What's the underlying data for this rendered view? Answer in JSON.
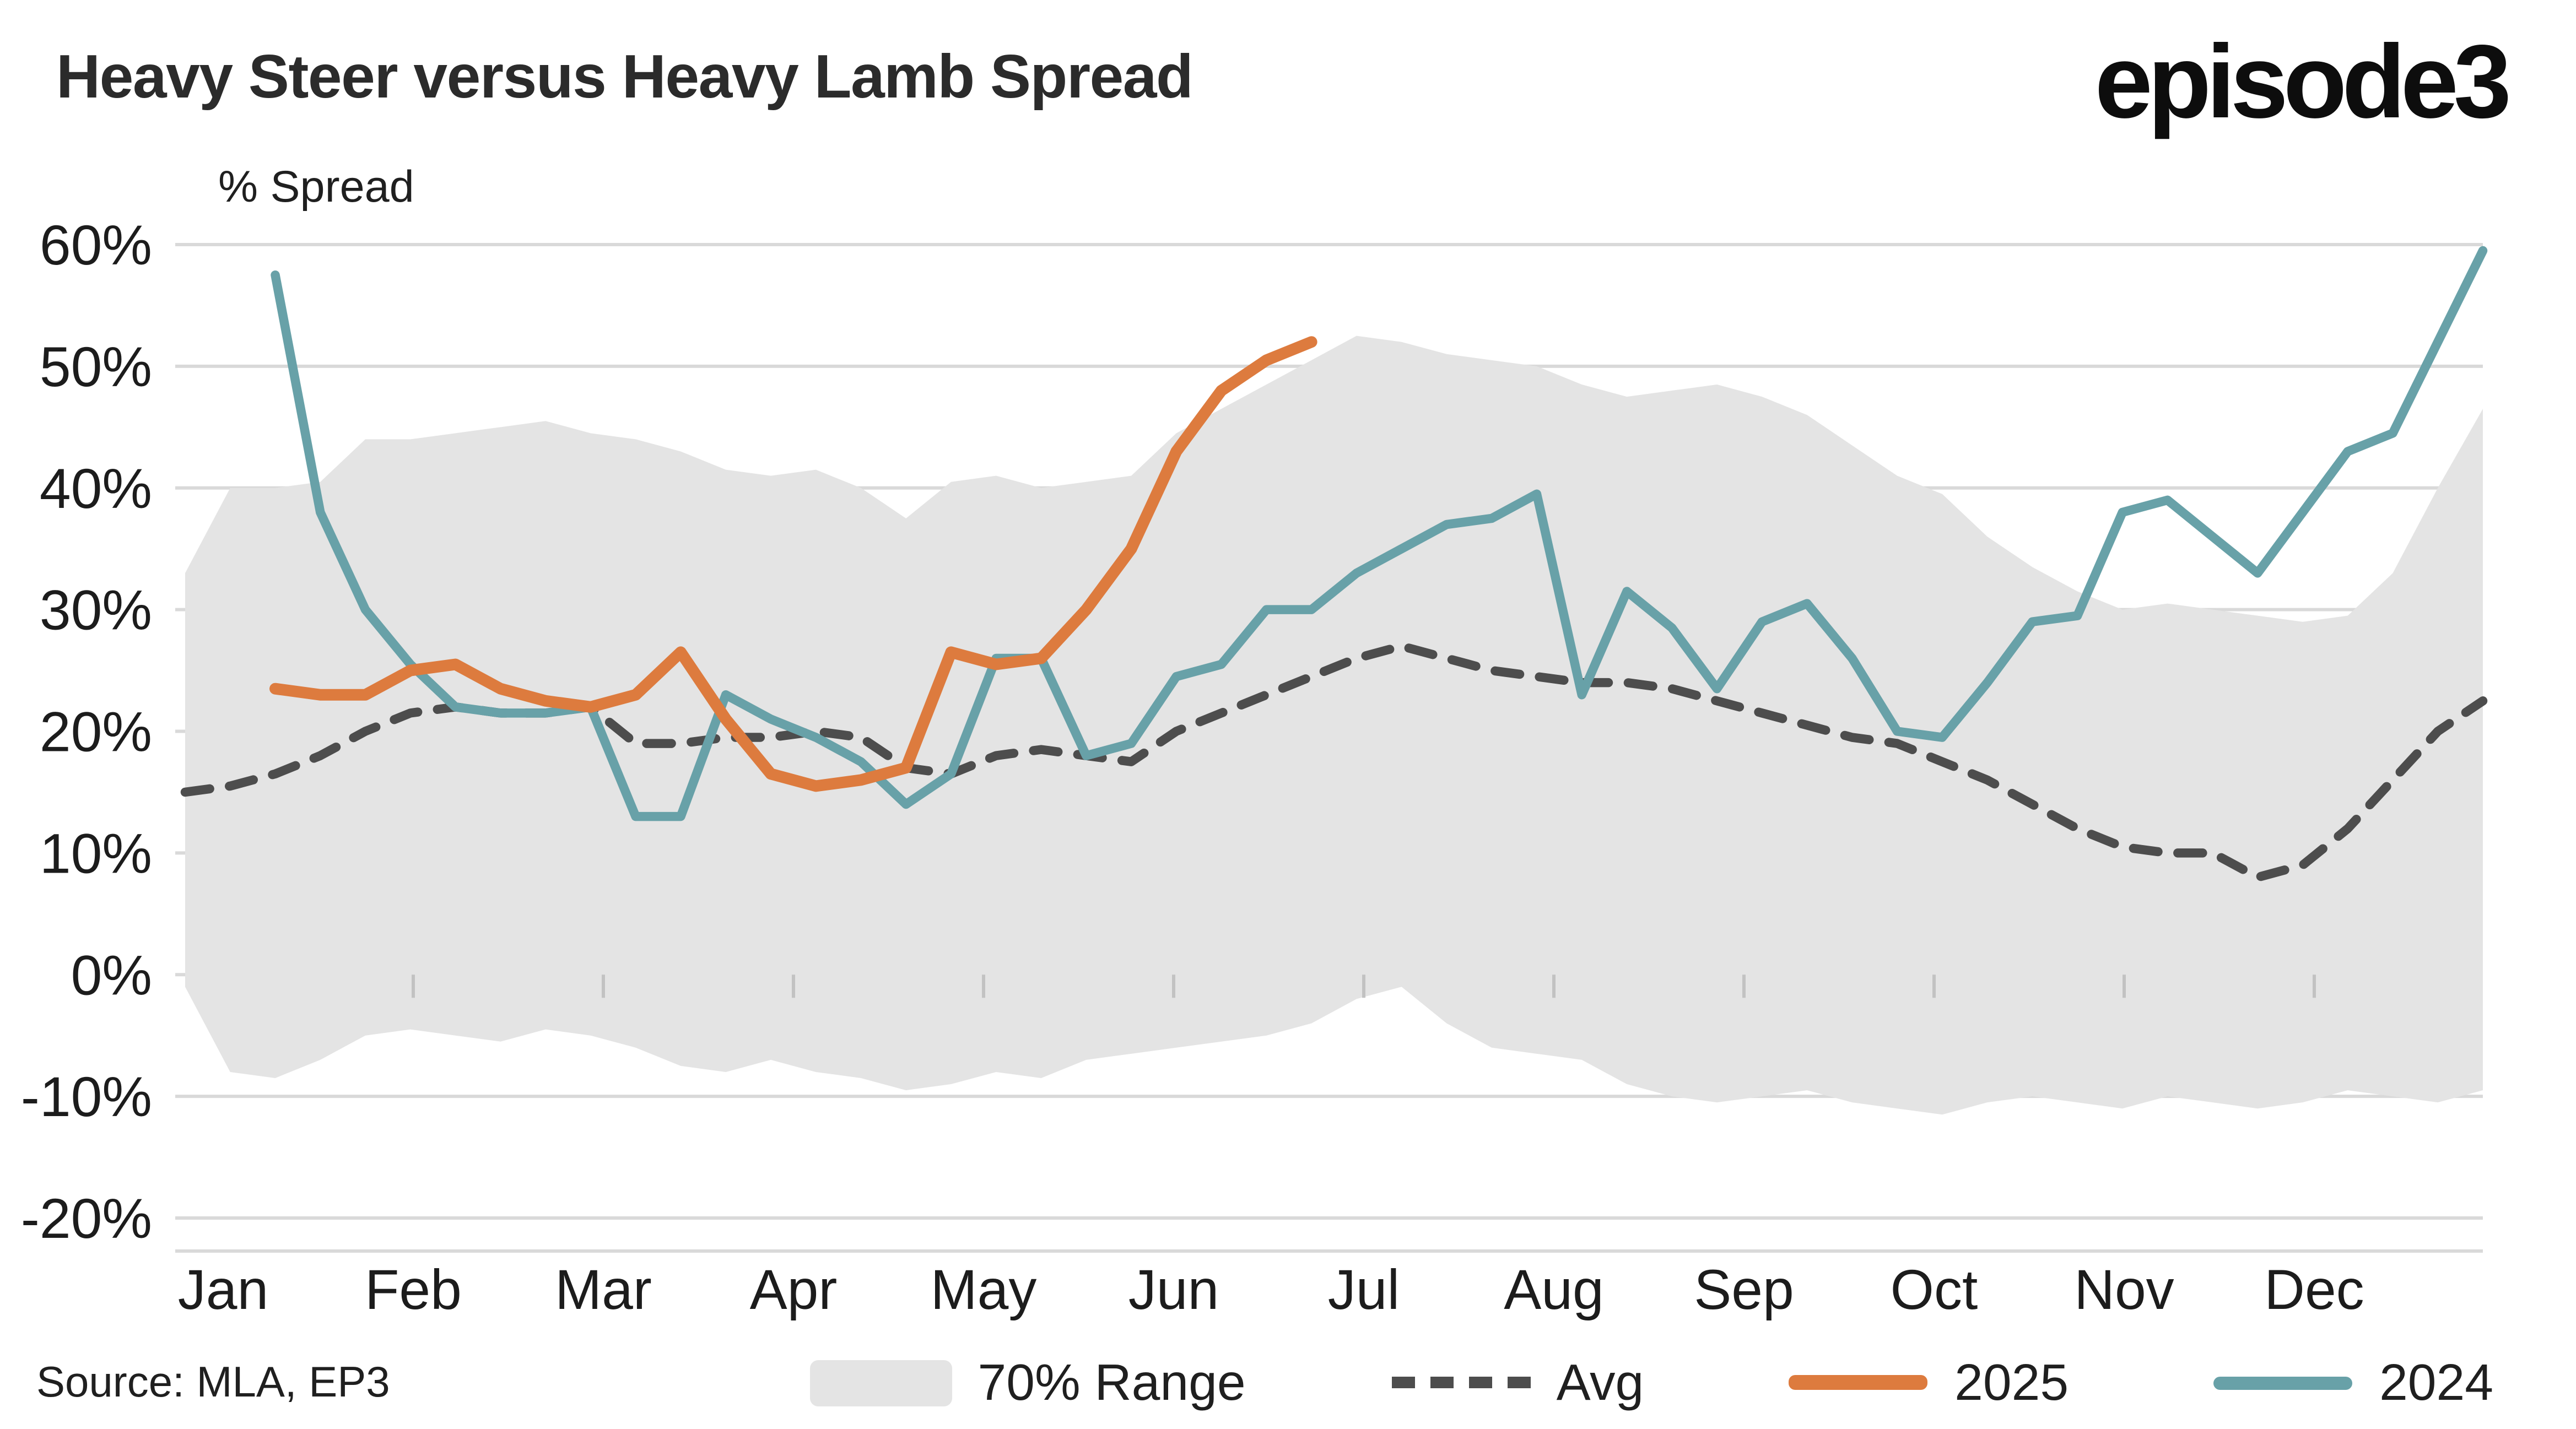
{
  "header": {
    "title": "Heavy Steer versus Heavy Lamb Spread",
    "logo": "episode3"
  },
  "footer": {
    "source": "Source: MLA, EP3"
  },
  "legend": [
    {
      "label": "70% Range",
      "type": "band",
      "color": "#e4e4e4"
    },
    {
      "label": "Avg",
      "type": "dashed",
      "color": "#4d4d4d"
    },
    {
      "label": "2025",
      "type": "line",
      "color": "#dd7b3e"
    },
    {
      "label": "2024",
      "type": "line",
      "color": "#68a1a8"
    }
  ],
  "chart_data": {
    "type": "line",
    "title": "Heavy Steer versus Heavy Lamb Spread",
    "ylabel": "% Spread",
    "xlabel": "",
    "ylim": [
      -20,
      60
    ],
    "y_ticks": [
      -20,
      -10,
      0,
      10,
      20,
      30,
      40,
      50,
      60
    ],
    "x_unit": "week",
    "x_domain": [
      0,
      51
    ],
    "x_months": [
      "Jan",
      "Feb",
      "Mar",
      "Apr",
      "May",
      "Jun",
      "Jul",
      "Aug",
      "Sep",
      "Oct",
      "Nov",
      "Dec"
    ],
    "grid": true,
    "legend_position": "bottom",
    "band": {
      "name": "70% Range",
      "color": "#e4e4e4",
      "x_start": 0,
      "x_end": 51,
      "upper": [
        33,
        40,
        40,
        40.5,
        44,
        44,
        44.5,
        45,
        45.5,
        44.5,
        44,
        43,
        41.5,
        41,
        41.5,
        40,
        37.5,
        40.5,
        41,
        40,
        40.5,
        41,
        44.5,
        46.5,
        48.5,
        50.5,
        52.5,
        52,
        51,
        50.5,
        50,
        48.5,
        47.5,
        48,
        48.5,
        47.5,
        46,
        43.5,
        41,
        39.5,
        36,
        33.5,
        31.5,
        30,
        30.5,
        30,
        29.5,
        29,
        29.5,
        33,
        40,
        46.5
      ],
      "lower": [
        -1,
        -8,
        -8.5,
        -7,
        -5,
        -4.5,
        -5,
        -5.5,
        -4.5,
        -5,
        -6,
        -7.5,
        -8,
        -7,
        -8,
        -8.5,
        -9.5,
        -9,
        -8,
        -8.5,
        -7,
        -6.5,
        -6,
        -5.5,
        -5,
        -4,
        -2,
        -1,
        -4,
        -6,
        -6.5,
        -7,
        -9,
        -10,
        -10.5,
        -10,
        -9.5,
        -10.5,
        -11,
        -11.5,
        -10.5,
        -10,
        -10.5,
        -11,
        -10,
        -10.5,
        -11,
        -10.5,
        -9.5,
        -10,
        -10.5,
        -9.5
      ]
    },
    "series": [
      {
        "name": "Avg",
        "style": "dashed",
        "color": "#4d4d4d",
        "width": 5.5,
        "x_start": 0,
        "x_end": 51,
        "values": [
          15,
          15.5,
          16.5,
          18,
          20,
          21.5,
          22,
          21.5,
          21.5,
          22,
          19,
          19,
          19.5,
          19.5,
          20,
          19.5,
          17,
          16.5,
          18,
          18.5,
          18,
          17.5,
          20,
          21.5,
          23,
          24.5,
          26,
          27,
          26,
          25,
          24.5,
          24,
          24,
          23.5,
          22.5,
          21.5,
          20.5,
          19.5,
          19,
          17.5,
          16,
          14,
          12,
          10.5,
          10,
          10,
          8,
          9,
          12,
          16,
          20,
          22.5
        ]
      },
      {
        "name": "2024",
        "style": "solid",
        "color": "#68a1a8",
        "width": 5.5,
        "x_start": 2,
        "x_end": 51,
        "values": [
          57.5,
          38,
          30,
          25.5,
          22,
          21.5,
          21.5,
          22,
          13,
          13,
          23,
          21,
          19.5,
          17.5,
          14,
          16.5,
          26,
          26,
          18,
          19,
          24.5,
          25.5,
          30,
          30,
          33,
          35,
          37,
          37.5,
          39.5,
          23,
          31.5,
          28.5,
          23.5,
          29,
          30.5,
          26,
          20,
          19.5,
          24,
          29,
          29.5,
          38,
          39,
          36,
          33,
          38,
          43,
          44.5,
          52,
          59.5
        ]
      },
      {
        "name": "2025",
        "style": "solid",
        "color": "#dd7b3e",
        "width": 7,
        "x_start": 2,
        "x_end": 25,
        "values": [
          23.5,
          23,
          23,
          25,
          25.5,
          23.5,
          22.5,
          22,
          23,
          26.5,
          21,
          16.5,
          15.5,
          16,
          17,
          26.5,
          25.5,
          26,
          30,
          35,
          43,
          48,
          50.5,
          52
        ]
      }
    ]
  }
}
